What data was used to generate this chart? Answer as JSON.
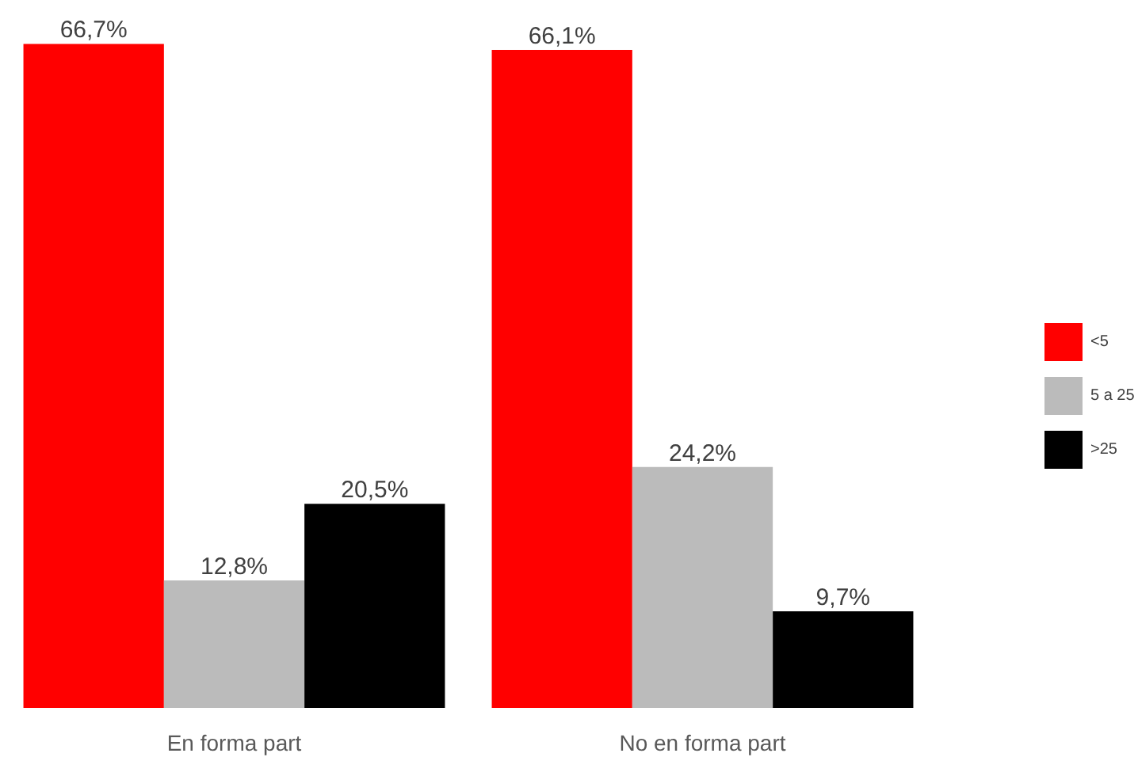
{
  "chart_data": {
    "type": "bar",
    "categories": [
      "En forma part",
      "No en forma part"
    ],
    "series": [
      {
        "name": "<5",
        "color": "#ff0000",
        "values": [
          66.7,
          66.1
        ],
        "value_labels": [
          "66,7%",
          "66,1%"
        ]
      },
      {
        "name": "5 a 25",
        "color": "#bbbbbb",
        "values": [
          12.8,
          24.2
        ],
        "value_labels": [
          "12,8%",
          "24,2%"
        ]
      },
      {
        "name": ">25",
        "color": "#000000",
        "values": [
          20.5,
          9.7
        ],
        "value_labels": [
          "20,5%",
          "9,7%"
        ]
      }
    ],
    "legend": "right"
  }
}
